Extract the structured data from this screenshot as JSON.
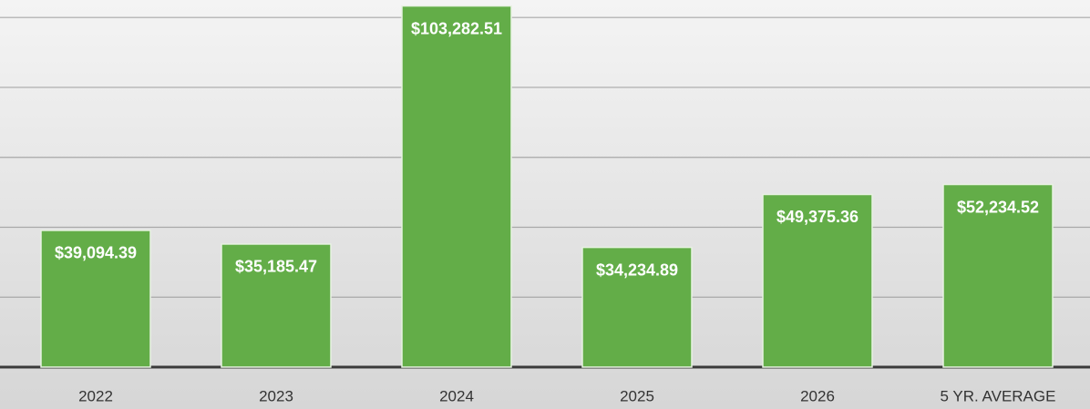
{
  "chart_data": {
    "type": "bar",
    "categories": [
      "2022",
      "2023",
      "2024",
      "2025",
      "2026",
      "5 YR. AVERAGE"
    ],
    "values": [
      39094.39,
      35185.47,
      103282.51,
      34234.89,
      49375.36,
      52234.52
    ],
    "value_labels": [
      "$39,094.39",
      "$35,185.47",
      "$103,282.51",
      "$34,234.89",
      "$49,375.36",
      "$52,234.52"
    ],
    "color": "#63ad48",
    "ylim": [
      0,
      105000
    ],
    "yticks": [
      0,
      20000,
      40000,
      60000,
      80000,
      100000
    ],
    "grid": true
  }
}
